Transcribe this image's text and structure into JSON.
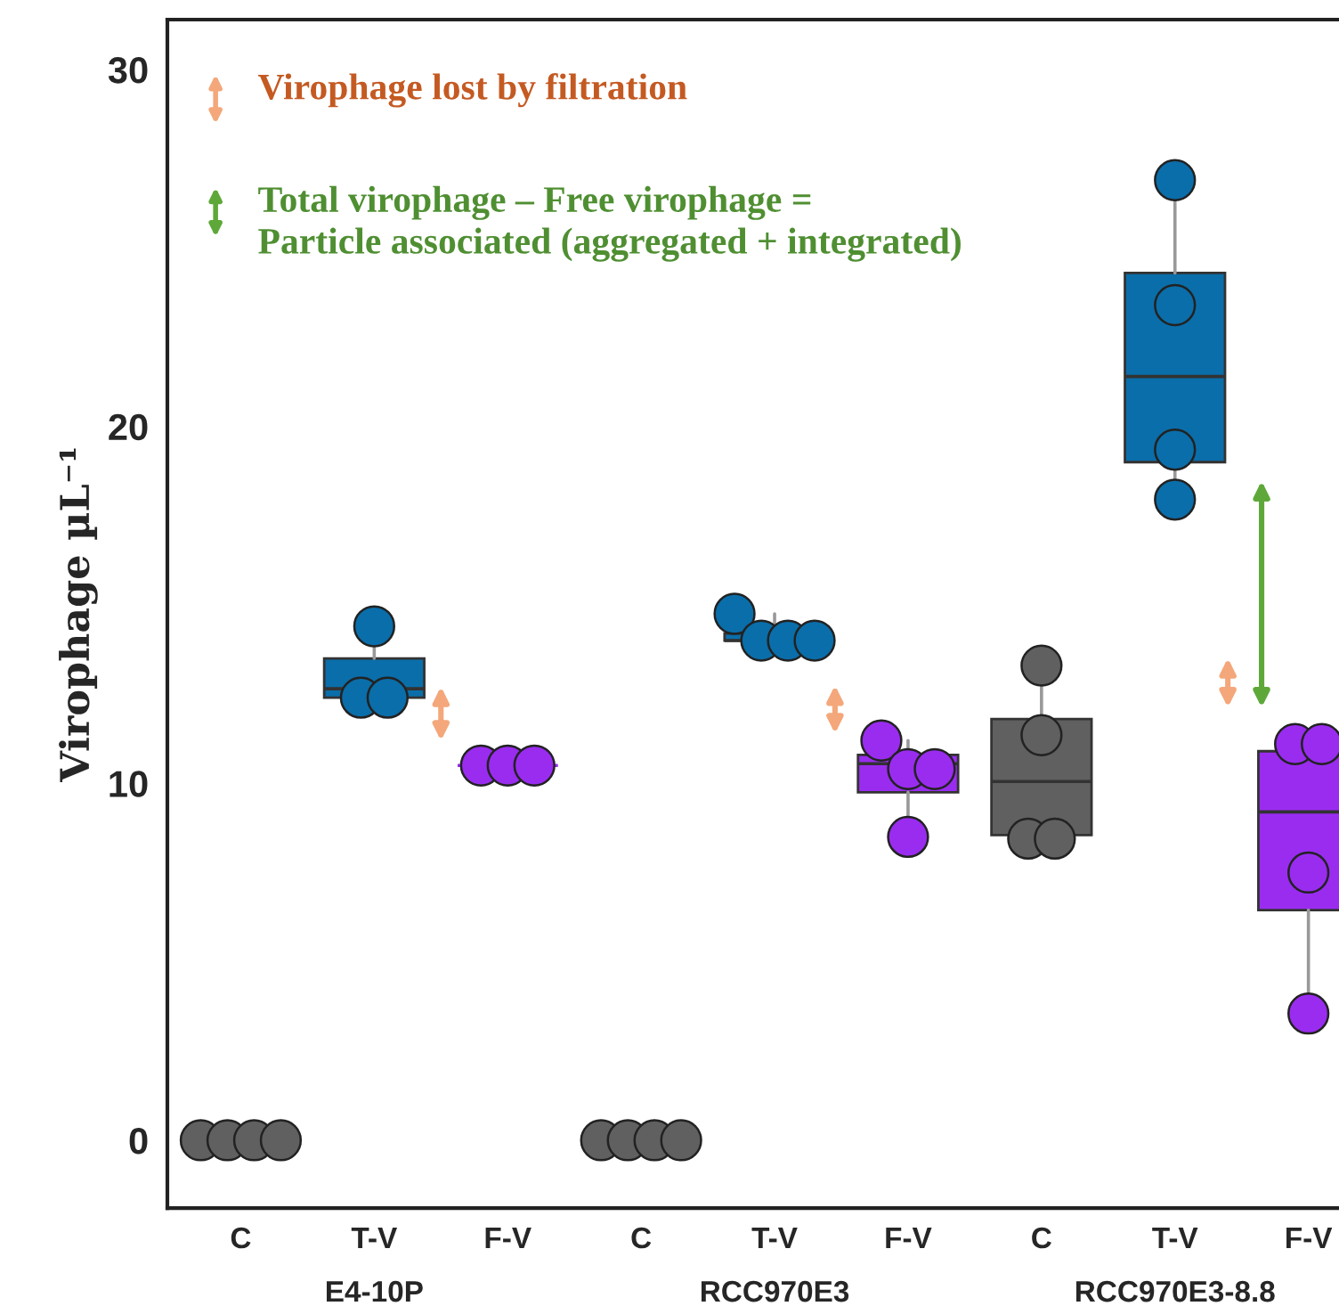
{
  "chart_data": {
    "type": "box",
    "ylabel": "Virophage µL⁻¹",
    "categories": [
      "C",
      "T-V\nE4-10P",
      "F-V",
      "C",
      "T-V\nRCC970E3",
      "F-V",
      "C",
      "T-V\nRCC970E3-8.8",
      "F-V"
    ],
    "colors": [
      "#606060",
      "#0a6eaa",
      "#9a2cf0",
      "#606060",
      "#0a6eaa",
      "#9a2cf0",
      "#606060",
      "#0a6eaa",
      "#9a2cf0"
    ],
    "boxes": [
      {
        "low": 0,
        "q1": 0,
        "median": 0,
        "q3": 0,
        "high": 0
      },
      {
        "low": 12.4,
        "q1": 12.4,
        "median": 12.65,
        "q3": 13.5,
        "high": 14.4
      },
      {
        "low": 10.5,
        "q1": 10.5,
        "median": 10.5,
        "q3": 10.5,
        "high": 10.5
      },
      {
        "low": 0,
        "q1": 0,
        "median": 0,
        "q3": 0,
        "high": 0
      },
      {
        "low": 14.0,
        "q1": 14.0,
        "median": 14.0,
        "q3": 14.2,
        "high": 14.75
      },
      {
        "low": 8.5,
        "q1": 9.75,
        "median": 10.55,
        "q3": 10.8,
        "high": 11.2
      },
      {
        "low": 8.45,
        "q1": 8.55,
        "median": 10.05,
        "q3": 11.8,
        "high": 13.3
      },
      {
        "low": 17.95,
        "q1": 19.0,
        "median": 21.4,
        "q3": 24.3,
        "high": 26.9
      },
      {
        "low": 3.55,
        "q1": 6.45,
        "median": 9.2,
        "q3": 10.9,
        "high": 11.1
      }
    ],
    "series": [
      {
        "type": "scatter",
        "colors": [
          "#606060",
          "#0a6eaa",
          "#9a2cf0",
          "#606060",
          "#0a6eaa",
          "#9a2cf0",
          "#606060",
          "#0a6eaa",
          "#9a2cf0"
        ],
        "values": [
          0,
          14.4,
          10.5,
          0,
          14.75,
          11.2,
          13.3,
          26.9,
          11.1
        ]
      },
      {
        "type": "scatter",
        "colors": [
          "#606060",
          "#0a6eaa",
          "#9a2cf0",
          "#606060",
          "#0a6eaa",
          "#9a2cf0",
          "#606060",
          "#0a6eaa",
          "#9a2cf0"
        ],
        "values": [
          0,
          12.4,
          10.5,
          0,
          14.0,
          10.4,
          11.35,
          23.4,
          11.1
        ]
      },
      {
        "type": "scatter",
        "colors": [
          "#606060",
          "#0a6eaa",
          "#9a2cf0",
          "#606060",
          "#0a6eaa",
          "#9a2cf0",
          "#606060",
          "#0a6eaa",
          "#9a2cf0"
        ],
        "values": [
          0,
          12.4,
          10.5,
          0,
          14.0,
          10.4,
          8.45,
          19.35,
          7.5
        ]
      },
      {
        "type": "scatter",
        "colors": [
          "#606060",
          "#0a6eaa",
          "#9a2cf0",
          "#606060",
          "#0a6eaa",
          "#9a2cf0",
          "#606060",
          "#0a6eaa",
          "#9a2cf0"
        ],
        "values": [
          0,
          null,
          null,
          0,
          14.0,
          8.5,
          8.45,
          17.95,
          3.55
        ]
      }
    ],
    "annotations": [
      "Virophage lost by filtration",
      "Total virophage – Free virophage =\nParticle associated (aggregated + integrated)"
    ],
    "ylim": [
      -1.9,
      31.4
    ],
    "yticks": [
      0,
      10,
      20,
      30
    ],
    "grid": false,
    "legend": false,
    "marker": "circle"
  }
}
